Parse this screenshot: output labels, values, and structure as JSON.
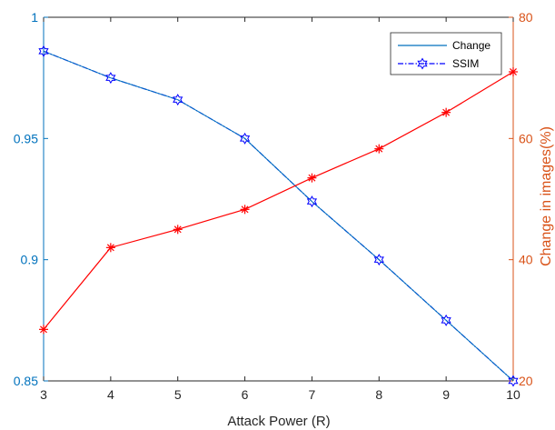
{
  "chart_data": {
    "type": "line",
    "xlabel": "Attack Power (R)",
    "ylabel": "",
    "y2label": "Change in images(%)",
    "x": [
      3,
      4,
      5,
      6,
      7,
      8,
      9,
      10
    ],
    "xlim": [
      3,
      10
    ],
    "ylim": [
      0.85,
      1
    ],
    "y2lim": [
      20,
      80
    ],
    "xticks": [
      "3",
      "4",
      "5",
      "6",
      "7",
      "8",
      "9",
      "10"
    ],
    "yticks": [
      "0.85",
      "0.9",
      "0.95",
      "1"
    ],
    "y2ticks": [
      "20",
      "40",
      "60",
      "80"
    ],
    "legend_position": "top-right",
    "grid": false,
    "series": [
      {
        "name": "SSIM",
        "axis": "left",
        "color": "#0000ff",
        "marker": "hexagram",
        "linestyle": "dash-dot",
        "values": [
          0.986,
          0.975,
          0.966,
          0.95,
          0.924,
          0.9,
          0.875,
          0.85
        ]
      },
      {
        "name": "",
        "axis": "right",
        "color": "#ff0000",
        "marker": "asterisk",
        "linestyle": "solid",
        "values": [
          28.5,
          42.0,
          45.0,
          48.3,
          53.5,
          58.3,
          64.3,
          71.0
        ]
      }
    ],
    "legend_entries": [
      {
        "label": "Change",
        "color": "#0072bd",
        "linestyle": "solid",
        "marker": "none"
      },
      {
        "label": "SSIM",
        "color": "#0000ff",
        "linestyle": "dash-dot",
        "marker": "hexagram"
      }
    ]
  },
  "colors": {
    "left_axis": "#0072bd",
    "right_axis": "#d95319",
    "axis_box": "#262626"
  }
}
